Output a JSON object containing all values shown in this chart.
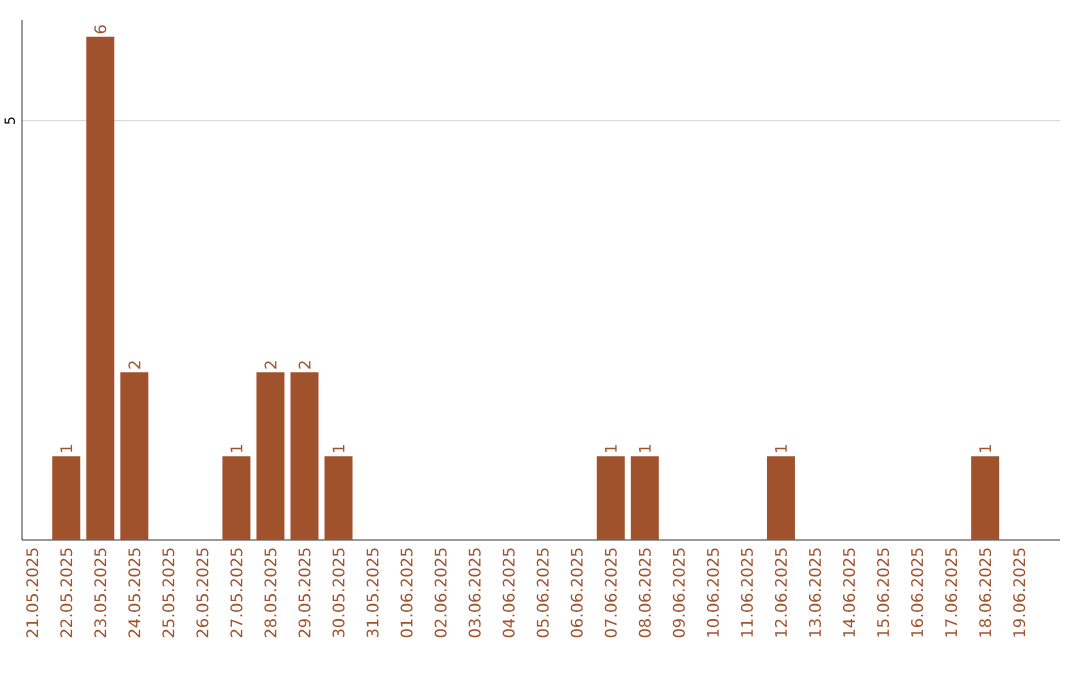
{
  "chart_data": {
    "type": "bar",
    "color": "#a0522d",
    "categories": [
      "21.05.2025",
      "22.05.2025",
      "23.05.2025",
      "24.05.2025",
      "25.05.2025",
      "26.05.2025",
      "27.05.2025",
      "28.05.2025",
      "29.05.2025",
      "30.05.2025",
      "31.05.2025",
      "01.06.2025",
      "02.06.2025",
      "03.06.2025",
      "04.06.2025",
      "05.06.2025",
      "06.06.2025",
      "07.06.2025",
      "08.06.2025",
      "09.06.2025",
      "10.06.2025",
      "11.06.2025",
      "12.06.2025",
      "13.06.2025",
      "14.06.2025",
      "15.06.2025",
      "16.06.2025",
      "17.06.2025",
      "18.06.2025",
      "19.06.2025"
    ],
    "values": [
      0,
      1,
      6,
      2,
      0,
      0,
      1,
      2,
      2,
      1,
      0,
      0,
      0,
      0,
      0,
      0,
      0,
      1,
      1,
      0,
      0,
      0,
      1,
      0,
      0,
      0,
      0,
      0,
      1,
      0
    ],
    "value_labels": [
      null,
      "1",
      "6",
      "2",
      null,
      null,
      "1",
      "2",
      "2",
      "1",
      null,
      null,
      null,
      null,
      null,
      null,
      null,
      "1",
      "1",
      null,
      null,
      null,
      "1",
      null,
      null,
      null,
      null,
      null,
      "1",
      null
    ],
    "ylim": [
      0,
      6.2
    ],
    "yticks": [
      5
    ],
    "grid": "y"
  }
}
